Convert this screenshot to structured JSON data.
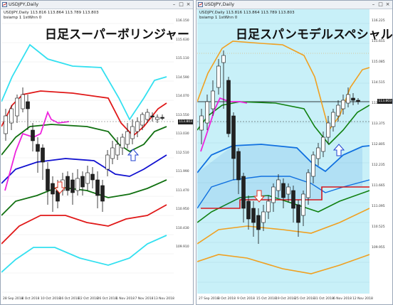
{
  "left": {
    "window_title": "USDJPY,Daily",
    "info_line1": "USDJPY,Daily  113.816 113.864 113.789 113.803",
    "info_line2": "bsiamp 1 1stWnn 0",
    "big_title": "日足スーパーボリンジャー",
    "price_labels": [
      "116.150",
      "115.630",
      "115.110",
      "114.590",
      "114.070",
      "113.550",
      "113.030",
      "112.510",
      "111.990",
      "111.470",
      "110.950",
      "110.430",
      "109.910"
    ],
    "current_price": "113.803",
    "date_labels": [
      "28 Sep 2018",
      "4 Oct 2018",
      "10 Oct 2018",
      "16 Oct 2018",
      "22 Oct 2018",
      "26 Oct 2018",
      "1 Nov 2018",
      "7 Nov 2018",
      "13 Nov 2018"
    ],
    "colors": {
      "bg": "#ffffff",
      "upper3": "#33e0f0",
      "upper2": "#e01818",
      "upper1": "#107010",
      "mid": "#1010d0",
      "chikou": "#ee22dd",
      "arrow_down": "#e03020",
      "arrow_up": "#2040d0"
    }
  },
  "right": {
    "window_title": "USDJPY,Daily",
    "info_line1": "USDJPY,Daily  113.816 113.864 113.789 113.803",
    "info_line2": "bsiamp 1 1stWnn 0",
    "big_title": "日足スパンモデルスペシャル",
    "price_labels": [
      "116.225",
      "115.655",
      "115.085",
      "114.515",
      "113.945",
      "113.375",
      "112.805",
      "112.235",
      "111.665",
      "111.095",
      "110.525",
      "109.955"
    ],
    "current_price": "113.803",
    "date_labels": [
      "27 Sep 2018",
      "3 Oct 2018",
      "9 Oct 2018",
      "15 Oct 2018",
      "19 Oct 2018",
      "25 Oct 2018",
      "31 Oct 2018",
      "6 Nov 2018",
      "12 Nov 2018"
    ],
    "colors": {
      "bg": "#c8f0f8",
      "orange": "#f0a020",
      "green": "#108010",
      "blue": "#1070e0",
      "red": "#e01010",
      "chikou": "#ee22dd",
      "hline": "#000000"
    }
  }
}
